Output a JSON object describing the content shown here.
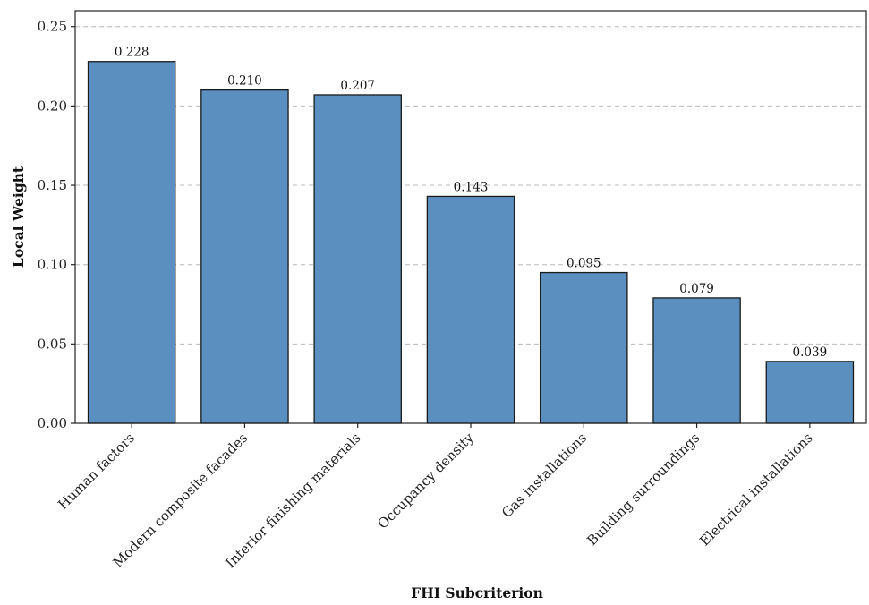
{
  "chart_data": {
    "type": "bar",
    "categories": [
      "Human factors",
      "Modern composite facades",
      "Interior finishing materials",
      "Occupancy density",
      "Gas installations",
      "Building surroundings",
      "Electrical installations"
    ],
    "values": [
      0.228,
      0.21,
      0.207,
      0.143,
      0.095,
      0.079,
      0.039
    ],
    "value_labels": [
      "0.228",
      "0.210",
      "0.207",
      "0.143",
      "0.095",
      "0.079",
      "0.039"
    ],
    "xlabel": "FHI Subcriterion",
    "ylabel": "Local Weight",
    "ylim": [
      0,
      0.26
    ],
    "yticks": [
      0.0,
      0.05,
      0.1,
      0.15,
      0.2,
      0.25
    ],
    "ytick_labels": [
      "0.00",
      "0.05",
      "0.10",
      "0.15",
      "0.20",
      "0.25"
    ],
    "grid": "y-dashed",
    "colors": {
      "bar": "#5a8fbf",
      "edge": "#1a1a1a",
      "grid": "#b8b8b8"
    }
  }
}
